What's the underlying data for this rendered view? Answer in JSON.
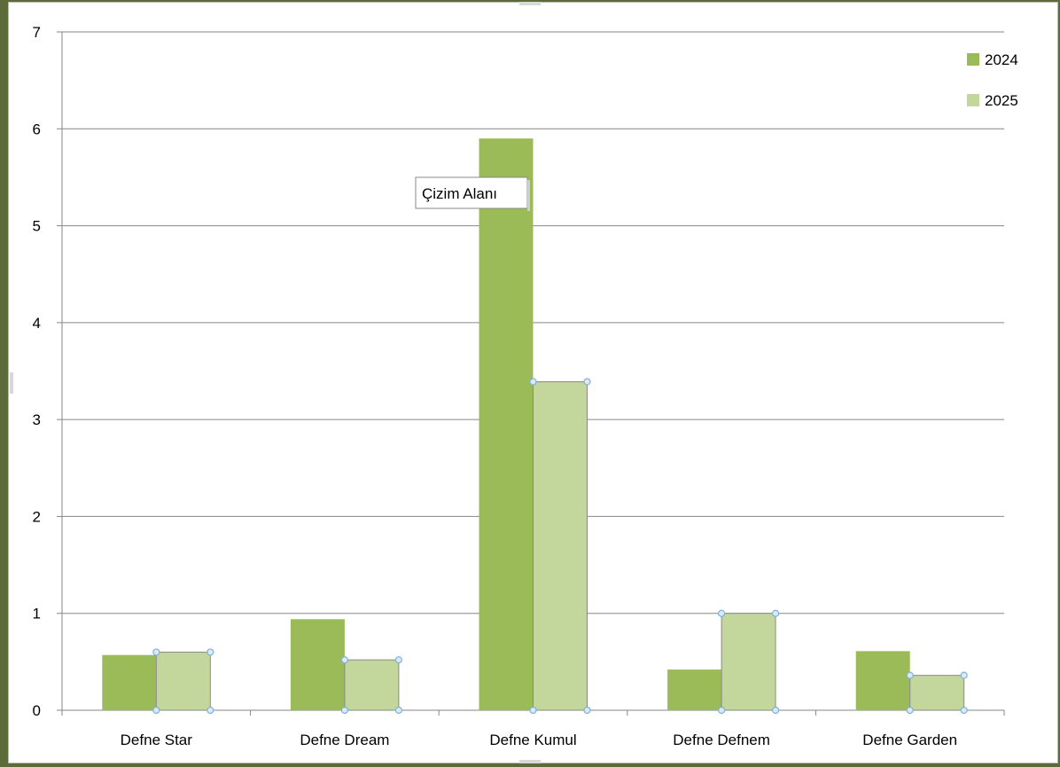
{
  "chart_data": {
    "type": "bar",
    "categories": [
      "Defne Star",
      "Defne Dream",
      "Defne Kumul",
      "Defne Defnem",
      "Defne Garden"
    ],
    "series": [
      {
        "name": "2024",
        "values": [
          0.57,
          0.94,
          5.9,
          0.42,
          0.61
        ],
        "color": "#9bbb59"
      },
      {
        "name": "2025",
        "values": [
          0.6,
          0.52,
          3.39,
          1.0,
          0.36
        ],
        "color": "#c3d69b"
      }
    ],
    "ylim": [
      0,
      7
    ],
    "yticks": [
      0,
      1,
      2,
      3,
      4,
      5,
      6,
      7
    ],
    "grid": true,
    "legend_position": "top-right",
    "selected_series": "2025",
    "selection_handle_color": "#7fb2d9"
  },
  "tooltip": {
    "text": "Çizim Alanı"
  }
}
